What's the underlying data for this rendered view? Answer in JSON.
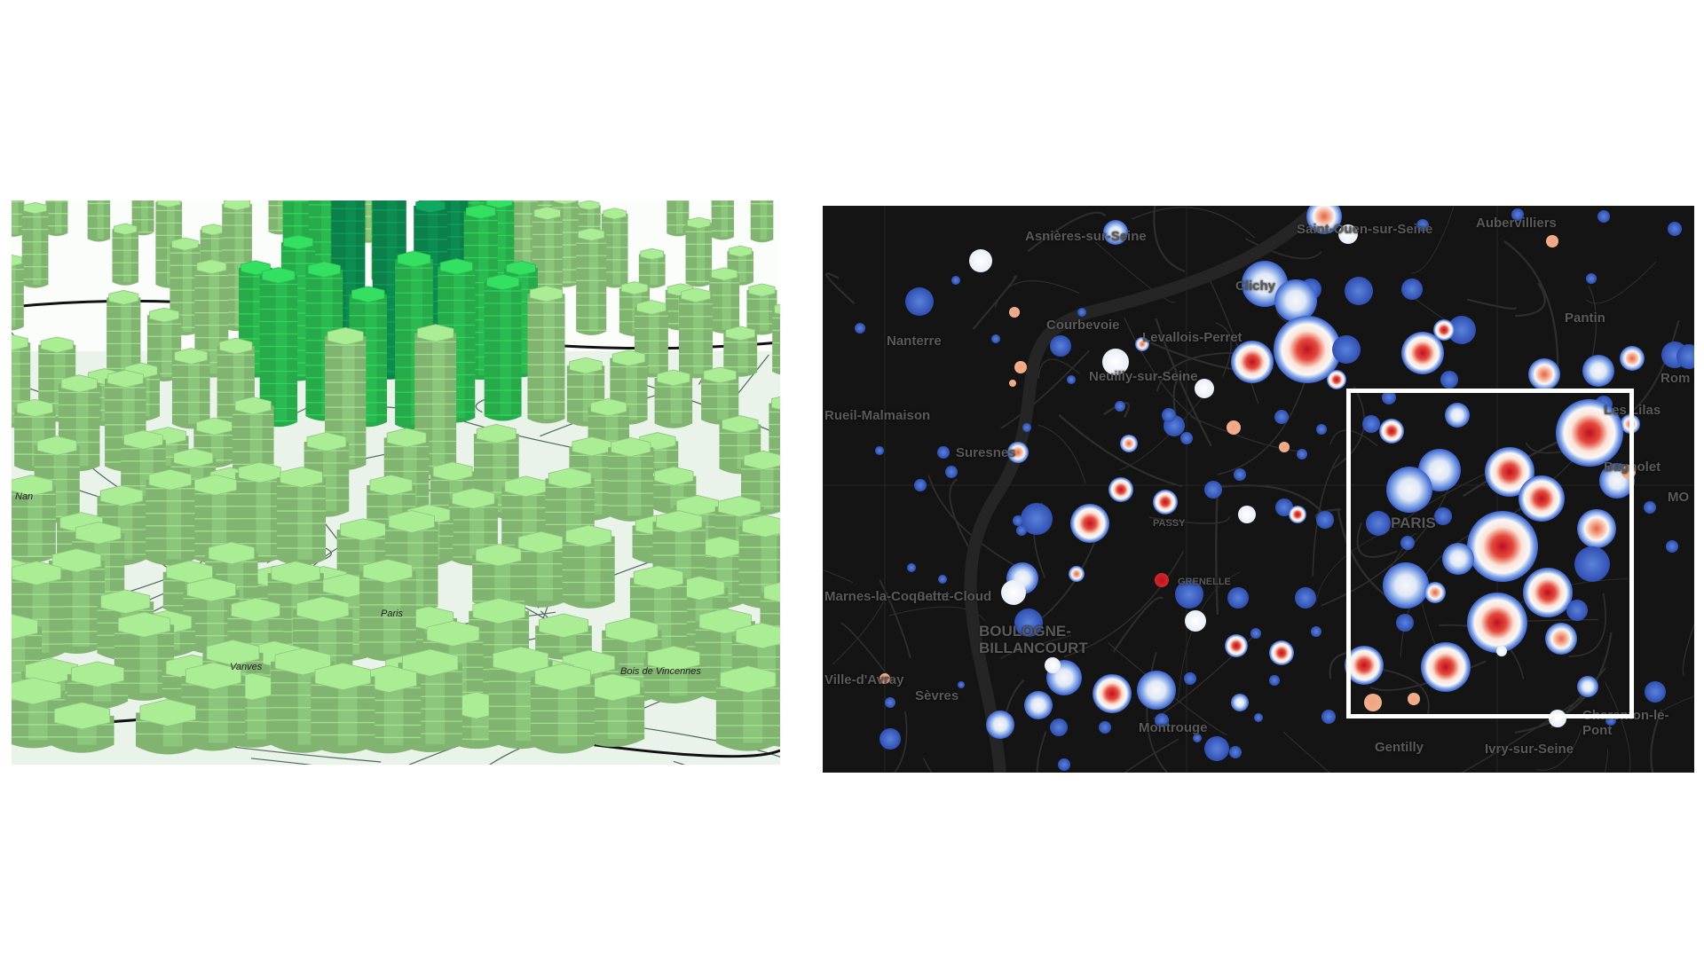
{
  "left_map": {
    "title": "",
    "labels": [
      "Paris",
      "Vanves",
      "Bois de Vincennes",
      "Nan"
    ],
    "colors": {
      "ground": "#e9f3ea",
      "road": "#1d3a2a",
      "column_light": "#9ddb8a",
      "column_mid": "#2fcf5a",
      "column_dark": "#0f9c5a"
    },
    "column_style": "3d-hexagon-columns"
  },
  "right_map": {
    "title": "",
    "labels": {
      "asnieres": "Asnières-sur-Seine",
      "saint_ouen": "Saint-Ouen-sur-Seine",
      "aubervilliers": "Aubervilliers",
      "clichy": "Clichy",
      "nanterre": "Nanterre",
      "courbevoie": "Courbevoie",
      "levallois": "Levallois-Perret",
      "pantin": "Pantin",
      "neuilly": "Neuilly-sur-Seine",
      "rueil": "Rueil-Malmaison",
      "suresnes": "Suresnes",
      "romainville": "Rom",
      "lilas": "Les Lilas",
      "bagnolet": "Bagnolet",
      "montreuil": "MO",
      "passy": "PASSY",
      "grenelle": "GRENELLE",
      "saint_cloud": "Saint-Cloud",
      "marches": "Marnes-la-Coquette",
      "boulogne": "BOULOGNE-BILLANCOURT",
      "ville_davray": "Ville-d'Avray",
      "sevres": "Sèvres",
      "montrouge": "Montrouge",
      "gentilly": "Gentilly",
      "ivry": "Ivry-sur-Seine",
      "charenton": "Charenton-le-Pont",
      "paris": "PARIS"
    },
    "colors": {
      "background": "#141414",
      "road": "#2e2e2e",
      "low": "#3a5fcd",
      "mid": "#f7f7f7",
      "high": "#c0101f",
      "highlight_box": "#ffffff"
    },
    "highlight_box": true
  }
}
